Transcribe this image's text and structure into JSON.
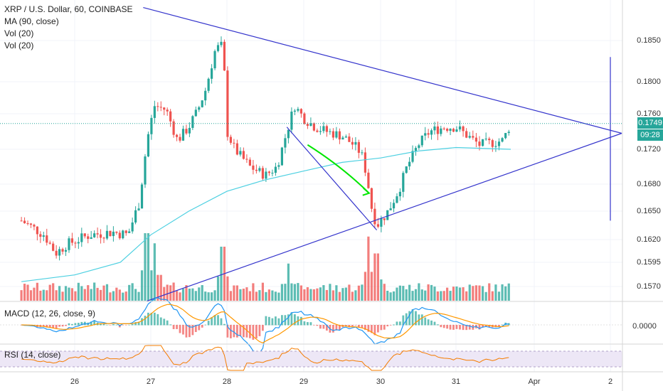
{
  "header": {
    "title": "XRP / U.S. Dollar, 60, COINBASE",
    "indicators": [
      "MA (90, close)",
      "Vol (20)",
      "Vol (20)"
    ]
  },
  "price_axis": {
    "tick_labels": [
      "0.1850",
      "0.1800",
      "0.1760",
      "0.1720",
      "0.1680",
      "0.1650",
      "0.1620",
      "0.1595",
      "0.1570"
    ],
    "last_price_tag": "0.1749",
    "countdown_tag": "09:28",
    "tag_color": "#26a69a"
  },
  "time_axis": {
    "labels": [
      "26",
      "27",
      "28",
      "29",
      "30",
      "31",
      "Apr",
      "2"
    ]
  },
  "macd": {
    "label": "MACD (12, 26, close, 9)",
    "axis_label": "0.0000"
  },
  "rsi": {
    "label": "RSI (14, close)"
  },
  "colors": {
    "up": "#26a69a",
    "down": "#ef5350",
    "ma": "#4dd0e1",
    "trendline": "#3434cc",
    "arrow": "#00e600",
    "macd_line": "#2196f3",
    "signal_line": "#ff9800",
    "rsi_line": "#f57c00",
    "rsi_band": "#ede7f6"
  },
  "chart_data": {
    "type": "candlestick",
    "title": "XRP / U.S. Dollar, 60, COINBASE",
    "x_domain": [
      25.3,
      2.5
    ],
    "ylim": [
      0.1555,
      0.1875
    ],
    "price_ticks": [
      0.185,
      0.18,
      0.176,
      0.172,
      0.168,
      0.165,
      0.162,
      0.1595,
      0.157
    ],
    "last_price": 0.1749,
    "price_anchors": [
      [
        25.3,
        0.164
      ],
      [
        25.6,
        0.1625
      ],
      [
        25.75,
        0.1605
      ],
      [
        25.9,
        0.1615
      ],
      [
        26.2,
        0.1625
      ],
      [
        26.5,
        0.1628
      ],
      [
        26.7,
        0.1625
      ],
      [
        26.85,
        0.166
      ],
      [
        26.95,
        0.173
      ],
      [
        27.05,
        0.177
      ],
      [
        27.2,
        0.1765
      ],
      [
        27.35,
        0.173
      ],
      [
        27.5,
        0.1745
      ],
      [
        27.62,
        0.1765
      ],
      [
        27.72,
        0.179
      ],
      [
        27.85,
        0.184
      ],
      [
        27.95,
        0.1845
      ],
      [
        28.0,
        0.174
      ],
      [
        28.1,
        0.172
      ],
      [
        28.3,
        0.17
      ],
      [
        28.5,
        0.169
      ],
      [
        28.65,
        0.17
      ],
      [
        28.78,
        0.174
      ],
      [
        28.88,
        0.177
      ],
      [
        29.0,
        0.1755
      ],
      [
        29.15,
        0.1745
      ],
      [
        29.3,
        0.174
      ],
      [
        29.5,
        0.1735
      ],
      [
        29.65,
        0.1725
      ],
      [
        29.75,
        0.1715
      ],
      [
        29.82,
        0.169
      ],
      [
        29.88,
        0.1655
      ],
      [
        29.95,
        0.1635
      ],
      [
        30.1,
        0.165
      ],
      [
        30.25,
        0.1675
      ],
      [
        30.35,
        0.17
      ],
      [
        30.5,
        0.1725
      ],
      [
        30.65,
        0.174
      ],
      [
        30.85,
        0.1745
      ],
      [
        31.0,
        0.1745
      ],
      [
        31.15,
        0.1735
      ],
      [
        31.3,
        0.1725
      ],
      [
        31.5,
        0.1728
      ],
      [
        31.6,
        0.173
      ],
      [
        31.7,
        0.1749
      ]
    ],
    "ma_90": [
      [
        25.3,
        0.1575
      ],
      [
        26.0,
        0.1582
      ],
      [
        26.6,
        0.1595
      ],
      [
        27.0,
        0.1625
      ],
      [
        27.5,
        0.165
      ],
      [
        28.0,
        0.1672
      ],
      [
        28.5,
        0.1685
      ],
      [
        29.0,
        0.1695
      ],
      [
        29.5,
        0.1705
      ],
      [
        30.0,
        0.171
      ],
      [
        30.5,
        0.1718
      ],
      [
        31.0,
        0.1722
      ],
      [
        31.7,
        0.172
      ]
    ],
    "volume_spikes": [
      [
        26.95,
        1.0
      ],
      [
        27.05,
        0.85
      ],
      [
        27.95,
        0.8
      ],
      [
        28.8,
        0.55
      ],
      [
        29.85,
        0.95
      ],
      [
        29.95,
        0.7
      ]
    ],
    "annotations": {
      "upper_trendline": [
        [
          26.9,
          0.189
        ],
        [
          2.15,
          0.1738
        ]
      ],
      "lower_trendline": [
        [
          26.95,
          0.1555
        ],
        [
          2.15,
          0.1738
        ]
      ],
      "vertical_line_x": 2.0,
      "vertical_line_range": [
        0.164,
        0.183
      ],
      "drop_line": [
        [
          28.78,
          0.1745
        ],
        [
          29.95,
          0.163
        ]
      ],
      "green_arrow": [
        [
          29.05,
          0.1725
        ],
        [
          29.5,
          0.17
        ],
        [
          29.85,
          0.167
        ]
      ]
    }
  }
}
